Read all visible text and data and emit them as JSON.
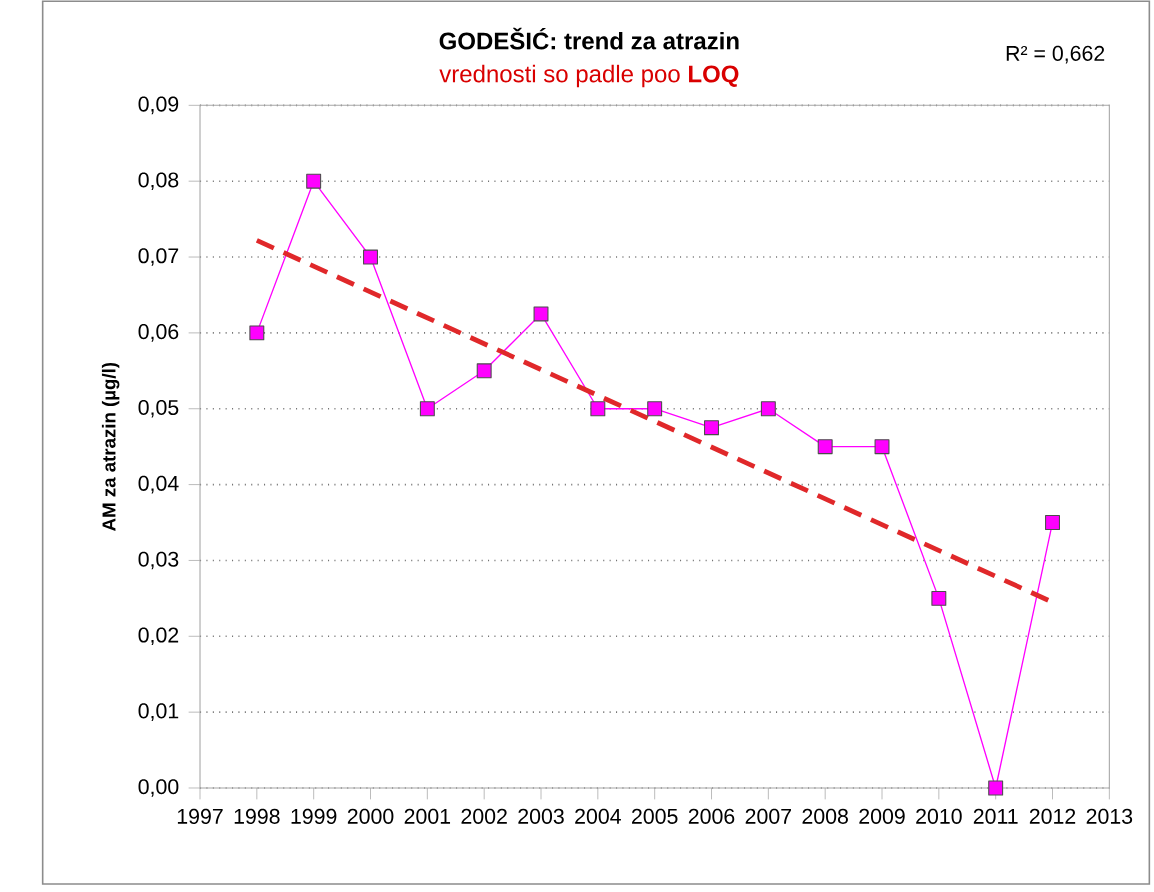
{
  "chart_data": {
    "type": "line",
    "title": "GODEŠIĆ: trend za atrazin",
    "subtitle": "vrednosti so padle poo **LOQ**",
    "ylabel": "AM za atrazin (µg/l)",
    "annotations": [
      "R² = 0,662"
    ],
    "x": [
      1998,
      1999,
      2000,
      2001,
      2002,
      2003,
      2004,
      2005,
      2006,
      2007,
      2008,
      2009,
      2010,
      2011,
      2012
    ],
    "series": [
      {
        "color": "#ff00ff",
        "marker": "square",
        "values": [
          0.06,
          0.08,
          0.07,
          0.05,
          0.055,
          0.0625,
          0.05,
          0.05,
          0.0475,
          0.05,
          0.045,
          0.045,
          0.025,
          0.0,
          0.035
        ]
      },
      {
        "color": "#e0282a",
        "marker": "none",
        "line_style": "dashed",
        "x": [
          1998,
          2012
        ],
        "values": [
          0.0722,
          0.0245
        ]
      }
    ],
    "xlim": [
      1997,
      2013
    ],
    "xticks": [
      1997,
      1998,
      1999,
      2000,
      2001,
      2002,
      2003,
      2004,
      2005,
      2006,
      2007,
      2008,
      2009,
      2010,
      2011,
      2012,
      2013
    ],
    "ylim": [
      0,
      0.09
    ],
    "yticks": [
      {
        "value": 0,
        "label": "0,00"
      },
      {
        "value": 0.01,
        "label": "0,01"
      },
      {
        "value": 0.02,
        "label": "0,02"
      },
      {
        "value": 0.03,
        "label": "0,03"
      },
      {
        "value": 0.04,
        "label": "0,04"
      },
      {
        "value": 0.05,
        "label": "0,05"
      },
      {
        "value": 0.06,
        "label": "0,06"
      },
      {
        "value": 0.07,
        "label": "0,07"
      },
      {
        "value": 0.08,
        "label": "0,08"
      },
      {
        "value": 0.09,
        "label": "0,09"
      }
    ],
    "grid": "y"
  }
}
